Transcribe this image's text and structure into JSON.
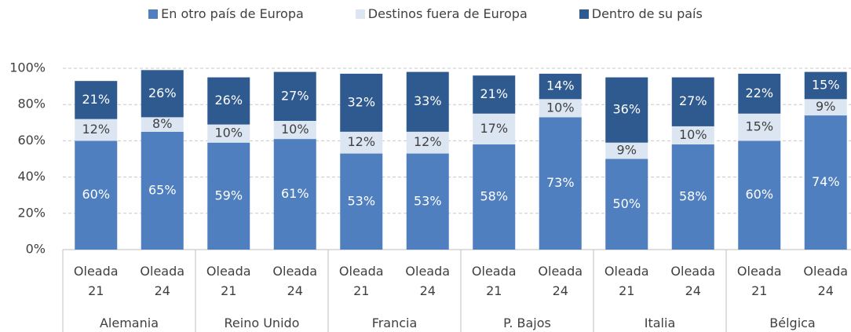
{
  "chart_data": {
    "type": "stacked-bar",
    "categories": [
      "Oleada 21",
      "Oleada 24",
      "Oleada 21",
      "Oleada 24",
      "Oleada 21",
      "Oleada 24",
      "Oleada 21",
      "Oleada 24",
      "Oleada 21",
      "Oleada 24",
      "Oleada 21",
      "Oleada 24"
    ],
    "groups": [
      "Alemania",
      "Reino Unido",
      "Francia",
      "P. Bajos",
      "Italia",
      "Bélgica"
    ],
    "series": [
      {
        "name": "En otro país de Europa",
        "color": "#4f7fbf",
        "values": [
          60,
          65,
          59,
          61,
          53,
          53,
          58,
          73,
          50,
          58,
          60,
          74
        ],
        "value_labels": [
          "60%",
          "65%",
          "59%",
          "61%",
          "53%",
          "53%",
          "58%",
          "73%",
          "50%",
          "58%",
          "60%",
          "74%"
        ]
      },
      {
        "name": "Destinos fuera de Europa",
        "color": "#dce6f2",
        "values": [
          12,
          8,
          10,
          10,
          12,
          12,
          17,
          10,
          9,
          10,
          15,
          9
        ],
        "value_labels": [
          "12%",
          "8%",
          "10%",
          "10%",
          "12%",
          "12%",
          "17%",
          "10%",
          "9%",
          "10%",
          "15%",
          "9%"
        ]
      },
      {
        "name": "Dentro de su país",
        "color": "#2f5a8f",
        "values": [
          21,
          26,
          26,
          27,
          32,
          33,
          21,
          14,
          36,
          27,
          22,
          15
        ],
        "value_labels": [
          "21%",
          "26%",
          "26%",
          "27%",
          "32%",
          "33%",
          "21%",
          "14%",
          "36%",
          "27%",
          "22%",
          "15%"
        ]
      }
    ],
    "ylim": [
      0,
      100
    ],
    "yticks": [
      {
        "value": 0,
        "label": "0%"
      },
      {
        "value": 20,
        "label": "20%"
      },
      {
        "value": 40,
        "label": "40%"
      },
      {
        "value": 60,
        "label": "60%"
      },
      {
        "value": 80,
        "label": "80%"
      },
      {
        "value": 100,
        "label": "100%"
      }
    ],
    "grid": true
  }
}
